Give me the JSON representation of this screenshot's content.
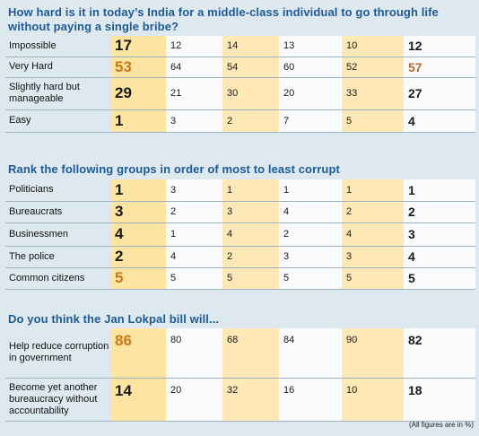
{
  "sections": [
    {
      "title": "How hard is it in today’s India for a middle-class individual to go through life without paying a single bribe?",
      "rows": [
        {
          "label": "Impossible",
          "values": [
            "17",
            "12",
            "14",
            "13",
            "10",
            "12"
          ]
        },
        {
          "label": "Very Hard",
          "values": [
            "53",
            "64",
            "54",
            "60",
            "52",
            "57"
          ]
        },
        {
          "label": "Slightly hard but manageable",
          "values": [
            "29",
            "21",
            "30",
            "20",
            "33",
            "27"
          ]
        },
        {
          "label": "Easy",
          "values": [
            "1",
            "3",
            "2",
            "7",
            "5",
            "4"
          ]
        }
      ]
    },
    {
      "title": "Rank the following groups in order of most to least corrupt",
      "rows": [
        {
          "label": "Politicians",
          "values": [
            "1",
            "3",
            "1",
            "1",
            "1",
            "1"
          ]
        },
        {
          "label": "Bureaucrats",
          "values": [
            "3",
            "2",
            "3",
            "4",
            "2",
            "2"
          ]
        },
        {
          "label": "Businessmen",
          "values": [
            "4",
            "1",
            "4",
            "2",
            "4",
            "3"
          ]
        },
        {
          "label": "The police",
          "values": [
            "2",
            "4",
            "2",
            "3",
            "3",
            "4"
          ]
        },
        {
          "label": "Common citizens",
          "values": [
            "5",
            "5",
            "5",
            "5",
            "5",
            "5"
          ]
        }
      ]
    },
    {
      "title": "Do you think the Jan Lokpal bill will...",
      "rows": [
        {
          "label": "Help reduce corruption in government",
          "values": [
            "86",
            "80",
            "68",
            "84",
            "90",
            "82"
          ]
        },
        {
          "label": "Become yet another bureaucracy without accountability",
          "values": [
            "14",
            "20",
            "32",
            "16",
            "10",
            "18"
          ]
        }
      ]
    }
  ],
  "footnote": "(All figures are in %)",
  "colors": {
    "title": "#1f5a95",
    "highlight_column": "#fde4a3",
    "tint_column": "#fde8b6",
    "accent_value": "#c87818"
  }
}
